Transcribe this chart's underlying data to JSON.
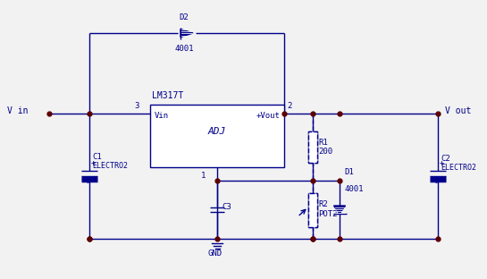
{
  "bg_color": "#f2f2f2",
  "line_color": "#00008B",
  "dot_color": "#5C0000",
  "text_color": "#00008B",
  "figsize": [
    5.45,
    3.12
  ],
  "dpi": 100,
  "ic_label": "LM317T",
  "ic_vin": "Vin",
  "ic_vout": "+Vout",
  "ic_adj": "ADJ",
  "vin_label": "V in",
  "vout_label": "V out",
  "gnd_label": "GND",
  "d2_label": "D2",
  "d2_type": "4001",
  "d1_label": "D1",
  "d1_type": "4001",
  "r1_label": "R1",
  "r1_val": "200",
  "r2_label": "R2",
  "r2_val": "POT2",
  "c1_label": "C1",
  "c1_type": "ELECTRO2",
  "c2_label": "C2",
  "c2_type": "ELECTRO2",
  "c3_label": "C3",
  "pin1": "1",
  "pin2": "2",
  "pin3": "3"
}
